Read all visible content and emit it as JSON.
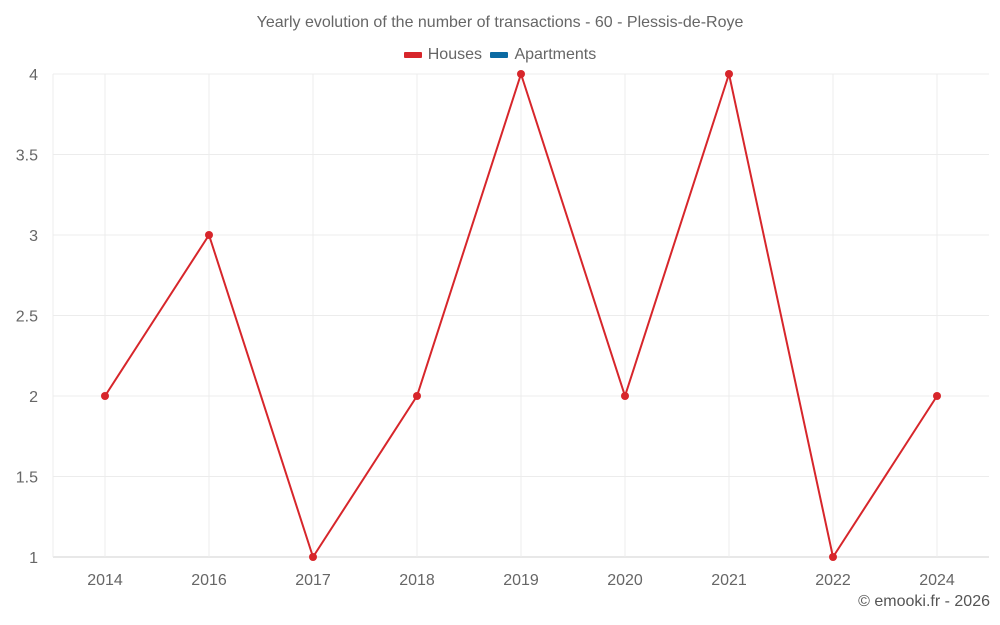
{
  "chart_data": {
    "type": "line",
    "title": "Yearly evolution of the number of transactions - 60 - Plessis-de-Roye",
    "categories": [
      "2014",
      "2016",
      "2017",
      "2018",
      "2019",
      "2020",
      "2021",
      "2022",
      "2024"
    ],
    "series": [
      {
        "name": "Houses",
        "color": "#d7262b",
        "values": [
          2,
          3,
          1,
          2,
          4,
          2,
          4,
          1,
          2
        ]
      },
      {
        "name": "Apartments",
        "color": "#0b6aa2",
        "values": []
      }
    ],
    "xlabel": "",
    "ylabel": "",
    "ylim": [
      1,
      4
    ],
    "yticks": [
      "1",
      "1.5",
      "2",
      "2.5",
      "3",
      "3.5",
      "4"
    ],
    "grid": true,
    "legend_position": "top"
  },
  "header": {
    "title": "Yearly evolution of the number of transactions - 60 - Plessis-de-Roye"
  },
  "legend": {
    "items": [
      {
        "label": "Houses",
        "color": "#d7262b"
      },
      {
        "label": "Apartments",
        "color": "#0b6aa2"
      }
    ]
  },
  "footer": {
    "credit": "© emooki.fr - 2026"
  }
}
